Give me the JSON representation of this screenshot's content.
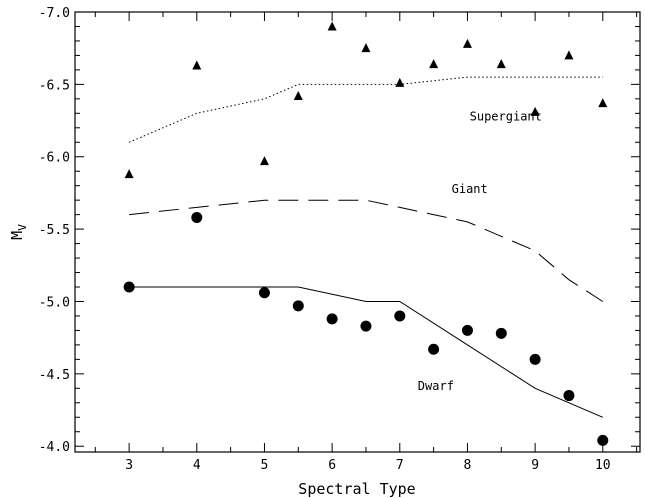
{
  "chart_data": {
    "type": "scatter",
    "xlabel": "Spectral Type",
    "ylabel_main": "M",
    "ylabel_sub": "V",
    "xlim": [
      2.2,
      10.55
    ],
    "ylim": [
      -3.96,
      -7.0
    ],
    "x_ticks": [
      3,
      4,
      5,
      6,
      7,
      8,
      9,
      10
    ],
    "x_tick_labels": [
      "3",
      "4",
      "5",
      "6",
      "7",
      "8",
      "9",
      "10"
    ],
    "y_ticks": [
      -4.0,
      -4.5,
      -5.0,
      -5.5,
      -6.0,
      -6.5,
      -7.0
    ],
    "y_tick_labels": [
      "-4.0",
      "-4.5",
      "-5.0",
      "-5.5",
      "-6.0",
      "-6.5",
      "-7.0"
    ],
    "grid": false,
    "series": [
      {
        "marker": "triangle",
        "points": [
          [
            3,
            -5.88
          ],
          [
            4,
            -6.63
          ],
          [
            5,
            -5.97
          ],
          [
            5.5,
            -6.42
          ],
          [
            6,
            -6.9
          ],
          [
            6.5,
            -6.75
          ],
          [
            7,
            -6.51
          ],
          [
            7.5,
            -6.64
          ],
          [
            8,
            -6.78
          ],
          [
            8.5,
            -6.64
          ],
          [
            9,
            -6.31
          ],
          [
            9.5,
            -6.7
          ],
          [
            10,
            -6.37
          ]
        ]
      },
      {
        "marker": "circle",
        "points": [
          [
            3,
            -5.1
          ],
          [
            4,
            -5.58
          ],
          [
            5,
            -5.06
          ],
          [
            5.5,
            -4.97
          ],
          [
            6,
            -4.88
          ],
          [
            6.5,
            -4.83
          ],
          [
            7,
            -4.9
          ],
          [
            7.5,
            -4.67
          ],
          [
            8,
            -4.8
          ],
          [
            8.5,
            -4.78
          ],
          [
            9,
            -4.6
          ],
          [
            9.5,
            -4.35
          ],
          [
            10,
            -4.04
          ]
        ]
      },
      {
        "line": "dotted",
        "points": [
          [
            3,
            -6.1
          ],
          [
            4,
            -6.3
          ],
          [
            5,
            -6.4
          ],
          [
            5.5,
            -6.5
          ],
          [
            7,
            -6.5
          ],
          [
            8,
            -6.55
          ],
          [
            10,
            -6.55
          ]
        ]
      },
      {
        "line": "dashed",
        "points": [
          [
            3,
            -5.6
          ],
          [
            4,
            -5.65
          ],
          [
            5,
            -5.7
          ],
          [
            6.5,
            -5.7
          ],
          [
            7,
            -5.65
          ],
          [
            8,
            -5.55
          ],
          [
            9,
            -5.35
          ],
          [
            9.5,
            -5.15
          ],
          [
            10,
            -5.0
          ]
        ]
      },
      {
        "line": "solid",
        "points": [
          [
            3,
            -5.1
          ],
          [
            5.5,
            -5.1
          ],
          [
            6.5,
            -5.0
          ],
          [
            7,
            -5.0
          ],
          [
            8,
            -4.7
          ],
          [
            9,
            -4.4
          ],
          [
            10,
            -4.2
          ]
        ]
      }
    ],
    "annotations": [
      {
        "text": "Supergiant",
        "x": 9.1,
        "y": -6.25
      },
      {
        "text": "Giant",
        "x": 8.3,
        "y": -5.75
      },
      {
        "text": "Dwarf",
        "x": 7.8,
        "y": -4.39
      }
    ]
  }
}
